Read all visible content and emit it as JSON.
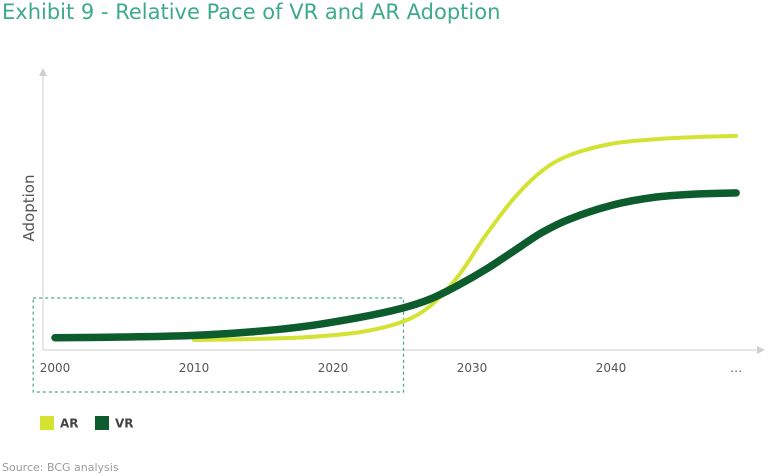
{
  "title": "Exhibit 9 - Relative Pace of VR and AR Adoption",
  "source": "Source: BCG analysis",
  "chart_data": {
    "type": "line",
    "title": "Exhibit 9 - Relative Pace of VR and AR Adoption",
    "xlabel": "",
    "ylabel": "Adoption",
    "categories": [
      "2000",
      "2010",
      "2020",
      "2030",
      "2040",
      "…"
    ],
    "xlim": [
      2000,
      2050
    ],
    "ylim": [
      0,
      100
    ],
    "grid": false,
    "legend": "bottom-left",
    "highlight_region": {
      "x": [
        1998,
        2025
      ],
      "label": ""
    },
    "series": [
      {
        "name": "AR",
        "color": "#d4e234",
        "x": [
          2010,
          2014,
          2018,
          2022,
          2025,
          2027,
          2029,
          2031,
          2033,
          2035,
          2037,
          2040,
          2043,
          2046,
          2049
        ],
        "y": [
          0,
          0.4,
          1.2,
          3.5,
          8,
          15,
          28,
          46,
          62,
          74,
          81,
          86,
          88,
          89,
          89.5
        ]
      },
      {
        "name": "VR",
        "color": "#0d5c2e",
        "x": [
          2000,
          2005,
          2010,
          2014,
          2018,
          2022,
          2025,
          2027,
          2029,
          2031,
          2033,
          2035,
          2037,
          2040,
          2043,
          2046,
          2049
        ],
        "y": [
          1,
          1.3,
          2,
          3.5,
          6,
          10,
          14,
          18,
          24,
          31,
          39,
          47,
          53,
          59,
          62.5,
          64,
          64.5
        ]
      }
    ]
  }
}
